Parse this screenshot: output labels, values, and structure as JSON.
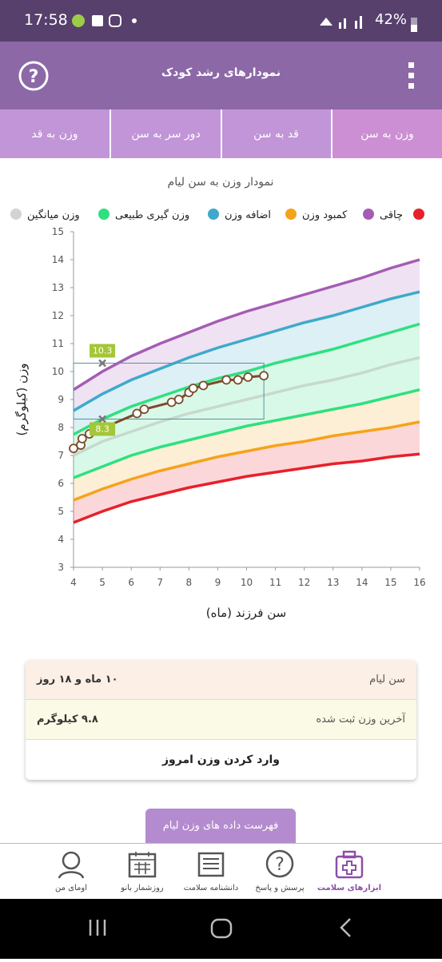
{
  "status": {
    "time": "17:58",
    "battery": "42%"
  },
  "header": {
    "title": "نمودارهای رشد کودک"
  },
  "tabs": [
    "وزن به سن",
    "قد به سن",
    "دور سر به سن",
    "وزن به قد"
  ],
  "chart_data": {
    "type": "line",
    "title": "نمودار وزن به سن لیام",
    "x_label": "سن فرزند (ماه)",
    "y_label": "وزن (کیلوگرم)",
    "xlim": [
      4,
      16
    ],
    "xticks": [
      4,
      5,
      6,
      7,
      8,
      9,
      10,
      11,
      12,
      13,
      14,
      15,
      16
    ],
    "ylim": [
      3,
      15
    ],
    "yticks": [
      3,
      4,
      5,
      6,
      7,
      8,
      9,
      10,
      11,
      12,
      13,
      14,
      15
    ],
    "x": [
      4,
      5,
      6,
      7,
      8,
      9,
      10,
      11,
      12,
      13,
      14,
      15,
      16
    ],
    "series": [
      {
        "name": "چاقی",
        "color": "#a55cb5",
        "values": [
          9.35,
          10.0,
          10.55,
          11.0,
          11.4,
          11.8,
          12.15,
          12.45,
          12.75,
          13.05,
          13.35,
          13.7,
          14.0
        ]
      },
      {
        "name": "کمبود وزن",
        "color": "#f5a31a",
        "values": [
          5.4,
          5.8,
          6.15,
          6.45,
          6.7,
          6.95,
          7.15,
          7.35,
          7.5,
          7.7,
          7.85,
          8.0,
          8.2
        ]
      },
      {
        "name": "اضافه وزن",
        "color": "#3daacb",
        "values": [
          8.6,
          9.2,
          9.7,
          10.1,
          10.5,
          10.85,
          11.15,
          11.45,
          11.75,
          12.0,
          12.3,
          12.6,
          12.85
        ]
      },
      {
        "name": "وزن گیری طبیعی",
        "color": "#2fe07f",
        "values": [
          7.75,
          8.3,
          8.75,
          9.1,
          9.45,
          9.75,
          10.0,
          10.3,
          10.55,
          10.8,
          11.1,
          11.4,
          11.7
        ]
      },
      {
        "name": "وزن میانگین",
        "color": "#c8d8cf",
        "values": [
          7.0,
          7.5,
          7.85,
          8.2,
          8.5,
          8.75,
          9.0,
          9.25,
          9.5,
          9.7,
          9.95,
          10.25,
          10.5
        ]
      },
      {
        "color": "#2fe07f",
        "values": [
          6.2,
          6.6,
          7.0,
          7.3,
          7.55,
          7.8,
          8.05,
          8.25,
          8.45,
          8.65,
          8.85,
          9.1,
          9.35
        ]
      },
      {
        "color": "#e8202a",
        "values": [
          4.6,
          5.0,
          5.35,
          5.6,
          5.85,
          6.05,
          6.25,
          6.4,
          6.55,
          6.7,
          6.8,
          6.95,
          7.05
        ]
      },
      {
        "color": "#7b4b2a",
        "x": [
          4.0,
          4.25,
          4.3,
          4.55,
          6.2,
          6.45,
          7.4,
          7.65,
          8.0,
          8.15,
          8.5,
          9.3,
          9.7,
          10.05,
          10.6
        ],
        "values": [
          7.25,
          7.37,
          7.6,
          7.77,
          8.5,
          8.65,
          8.9,
          9.0,
          9.25,
          9.4,
          9.5,
          9.7,
          9.7,
          9.8,
          9.85
        ]
      }
    ],
    "markers": [
      {
        "x": 5,
        "y": 10.3,
        "color": "#a4c639"
      },
      {
        "x": 5,
        "y": 8.3,
        "color": "#a4c639"
      }
    ]
  },
  "info": {
    "rows": [
      [
        "سن لیام",
        "۱۰ ماه و ۱۸ روز"
      ],
      [
        "آخرین وزن ثبت شده",
        "۹.۸ کیلوگرم"
      ]
    ],
    "action": "وارد کردن وزن امروز"
  },
  "list_button": "فهرست داده های وزن لیام",
  "nav": [
    "ابزارهای سلامت",
    "پرسش و پاسخ",
    "دانشنامه سلامت",
    "روزشمار بانو",
    "اومای من"
  ]
}
